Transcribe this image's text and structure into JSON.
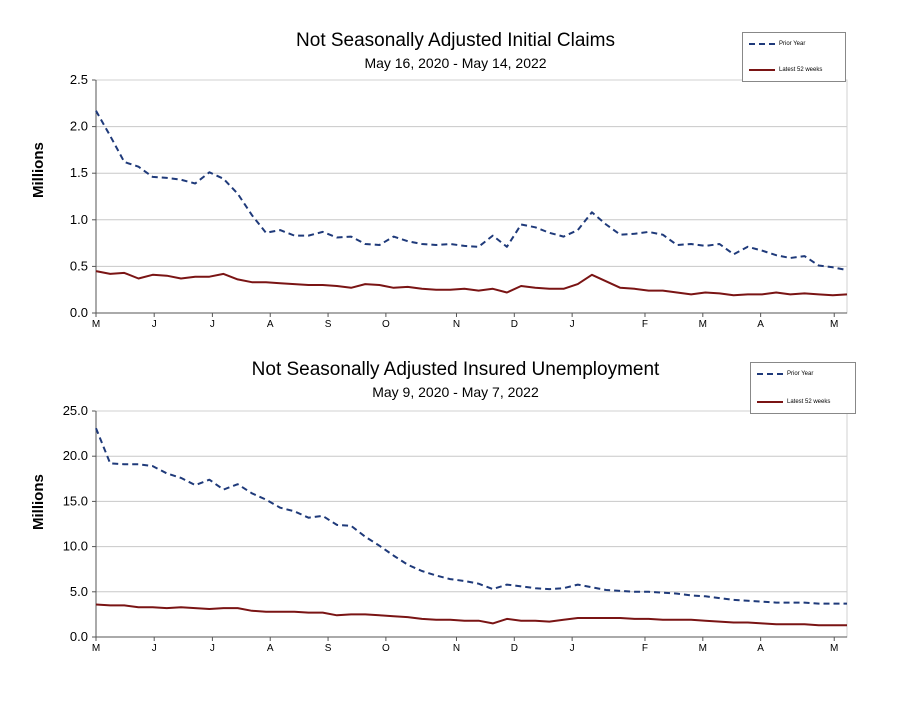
{
  "chart_data": [
    {
      "type": "line",
      "title": "Not Seasonally Adjusted Initial Claims",
      "subtitle": "May 16, 2020 - May 14, 2022",
      "ylabel": "Millions",
      "ylim": [
        0,
        2.5
      ],
      "yticks": [
        "0.0",
        "0.5",
        "1.0",
        "1.5",
        "2.0",
        "2.5"
      ],
      "xticks": [
        "M",
        "J",
        "J",
        "A",
        "S",
        "O",
        "N",
        "D",
        "J",
        "F",
        "M",
        "A",
        "M"
      ],
      "grid": true,
      "legend": "top-right",
      "series": [
        {
          "name": "Prior Year",
          "style": "dashed",
          "color": "#1f3a7a",
          "values": [
            2.17,
            1.9,
            1.62,
            1.57,
            1.46,
            1.45,
            1.43,
            1.39,
            1.51,
            1.44,
            1.28,
            1.05,
            0.86,
            0.89,
            0.83,
            0.83,
            0.87,
            0.81,
            0.82,
            0.74,
            0.73,
            0.82,
            0.77,
            0.74,
            0.73,
            0.74,
            0.72,
            0.71,
            0.83,
            0.71,
            0.95,
            0.92,
            0.86,
            0.82,
            0.89,
            1.08,
            0.95,
            0.84,
            0.85,
            0.87,
            0.84,
            0.73,
            0.74,
            0.72,
            0.74,
            0.63,
            0.71,
            0.67,
            0.62,
            0.59,
            0.61,
            0.51,
            0.49,
            0.46
          ]
        },
        {
          "name": "Latest 52 weeks",
          "style": "solid",
          "color": "#7a1414",
          "values": [
            0.45,
            0.42,
            0.43,
            0.37,
            0.41,
            0.4,
            0.37,
            0.39,
            0.39,
            0.42,
            0.36,
            0.33,
            0.33,
            0.32,
            0.31,
            0.3,
            0.3,
            0.29,
            0.27,
            0.31,
            0.3,
            0.27,
            0.28,
            0.26,
            0.25,
            0.25,
            0.26,
            0.24,
            0.26,
            0.22,
            0.29,
            0.27,
            0.26,
            0.26,
            0.31,
            0.41,
            0.34,
            0.27,
            0.26,
            0.24,
            0.24,
            0.22,
            0.2,
            0.22,
            0.21,
            0.19,
            0.2,
            0.2,
            0.22,
            0.2,
            0.21,
            0.2,
            0.19,
            0.2
          ]
        }
      ]
    },
    {
      "type": "line",
      "title": "Not Seasonally Adjusted Insured Unemployment",
      "subtitle": "May 9, 2020 - May 7, 2022",
      "ylabel": "Millions",
      "ylim": [
        0,
        25
      ],
      "yticks": [
        "0.0",
        "5.0",
        "10.0",
        "15.0",
        "20.0",
        "25.0"
      ],
      "xticks": [
        "M",
        "J",
        "J",
        "A",
        "S",
        "O",
        "N",
        "D",
        "J",
        "F",
        "M",
        "A",
        "M"
      ],
      "grid": true,
      "legend": "top-right",
      "series": [
        {
          "name": "Prior Year",
          "style": "dashed",
          "color": "#1f3a7a",
          "values": [
            23.1,
            19.2,
            19.1,
            19.1,
            18.9,
            18.1,
            17.6,
            16.8,
            17.4,
            16.3,
            16.9,
            15.9,
            15.2,
            14.3,
            13.9,
            13.2,
            13.4,
            12.4,
            12.3,
            11.1,
            10.1,
            9.0,
            8.0,
            7.3,
            6.8,
            6.4,
            6.2,
            5.9,
            5.3,
            5.8,
            5.6,
            5.4,
            5.3,
            5.4,
            5.8,
            5.5,
            5.2,
            5.1,
            5.0,
            5.0,
            4.9,
            4.8,
            4.6,
            4.5,
            4.3,
            4.1,
            4.0,
            3.9,
            3.8,
            3.8,
            3.8,
            3.7,
            3.7,
            3.7
          ]
        },
        {
          "name": "Latest 52 weeks",
          "style": "solid",
          "color": "#7a1414",
          "values": [
            3.6,
            3.5,
            3.5,
            3.3,
            3.3,
            3.2,
            3.3,
            3.2,
            3.1,
            3.2,
            3.2,
            2.9,
            2.8,
            2.8,
            2.8,
            2.7,
            2.7,
            2.4,
            2.5,
            2.5,
            2.4,
            2.3,
            2.2,
            2.0,
            1.9,
            1.9,
            1.8,
            1.8,
            1.5,
            2.0,
            1.8,
            1.8,
            1.7,
            1.9,
            2.1,
            2.1,
            2.1,
            2.1,
            2.0,
            2.0,
            1.9,
            1.9,
            1.9,
            1.8,
            1.7,
            1.6,
            1.6,
            1.5,
            1.4,
            1.4,
            1.4,
            1.3,
            1.3,
            1.3
          ]
        }
      ]
    }
  ]
}
